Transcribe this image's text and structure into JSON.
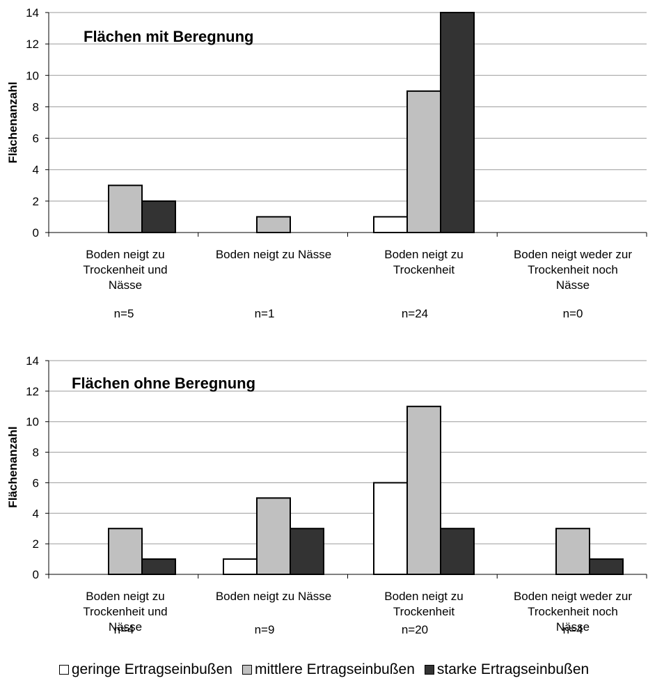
{
  "colors": {
    "geringe": "#ffffff",
    "mittlere": "#c0c0c0",
    "starke": "#333333",
    "grid": "#9a9a9a"
  },
  "chart_data": [
    {
      "type": "bar",
      "title": "Flächen mit Beregnung",
      "ylabel": "Flächenanzahl",
      "ylim": [
        0,
        14
      ],
      "yticks": [
        0,
        2,
        4,
        6,
        8,
        10,
        12,
        14
      ],
      "grid": true,
      "categories": [
        "Boden neigt zu Trockenheit und Nässe",
        "Boden neigt zu Nässe",
        "Boden neigt zu Trockenheit",
        "Boden neigt weder zur Trockenheit noch Nässe"
      ],
      "category_lines": [
        [
          "Boden neigt zu",
          "Trockenheit und",
          "Nässe"
        ],
        [
          "Boden neigt zu Nässe"
        ],
        [
          "Boden neigt zu",
          "Trockenheit"
        ],
        [
          "Boden neigt weder zur",
          "Trockenheit noch",
          "Nässe"
        ]
      ],
      "n_labels": [
        "n=5",
        "n=1",
        "n=24",
        "n=0"
      ],
      "series": [
        {
          "name": "geringe Ertragseinbußen",
          "values": [
            0,
            0,
            1,
            0
          ]
        },
        {
          "name": "mittlere Ertragseinbußen",
          "values": [
            3,
            1,
            9,
            0
          ]
        },
        {
          "name": "starke Ertragseinbußen",
          "values": [
            2,
            0,
            14,
            0
          ]
        }
      ]
    },
    {
      "type": "bar",
      "title": "Flächen ohne Beregnung",
      "ylabel": "Flächenanzahl",
      "ylim": [
        0,
        14
      ],
      "yticks": [
        0,
        2,
        4,
        6,
        8,
        10,
        12,
        14
      ],
      "grid": true,
      "categories": [
        "Boden neigt zu Trockenheit und Nässe",
        "Boden neigt zu Nässe",
        "Boden neigt zu Trockenheit",
        "Boden neigt weder zur Trockenheit noch Nässe"
      ],
      "category_lines": [
        [
          "Boden neigt zu",
          "Trockenheit und",
          "Nässe"
        ],
        [
          "Boden neigt zu Nässe"
        ],
        [
          "Boden neigt zu",
          "Trockenheit"
        ],
        [
          "Boden neigt weder zur",
          "Trockenheit noch",
          "Nässe"
        ]
      ],
      "n_labels": [
        "n=4",
        "n=9",
        "n=20",
        "n=4"
      ],
      "series": [
        {
          "name": "geringe Ertragseinbußen",
          "values": [
            0,
            1,
            6,
            0
          ]
        },
        {
          "name": "mittlere Ertragseinbußen",
          "values": [
            3,
            5,
            11,
            3
          ]
        },
        {
          "name": "starke Ertragseinbußen",
          "values": [
            1,
            3,
            3,
            1
          ]
        }
      ]
    }
  ],
  "legend": [
    {
      "label": "geringe Ertragseinbußen",
      "icon": "white-square-swatch"
    },
    {
      "label": "mittlere Ertragseinbußen",
      "icon": "gray-square-swatch"
    },
    {
      "label": "starke Ertragseinbußen",
      "icon": "dark-square-swatch"
    }
  ]
}
